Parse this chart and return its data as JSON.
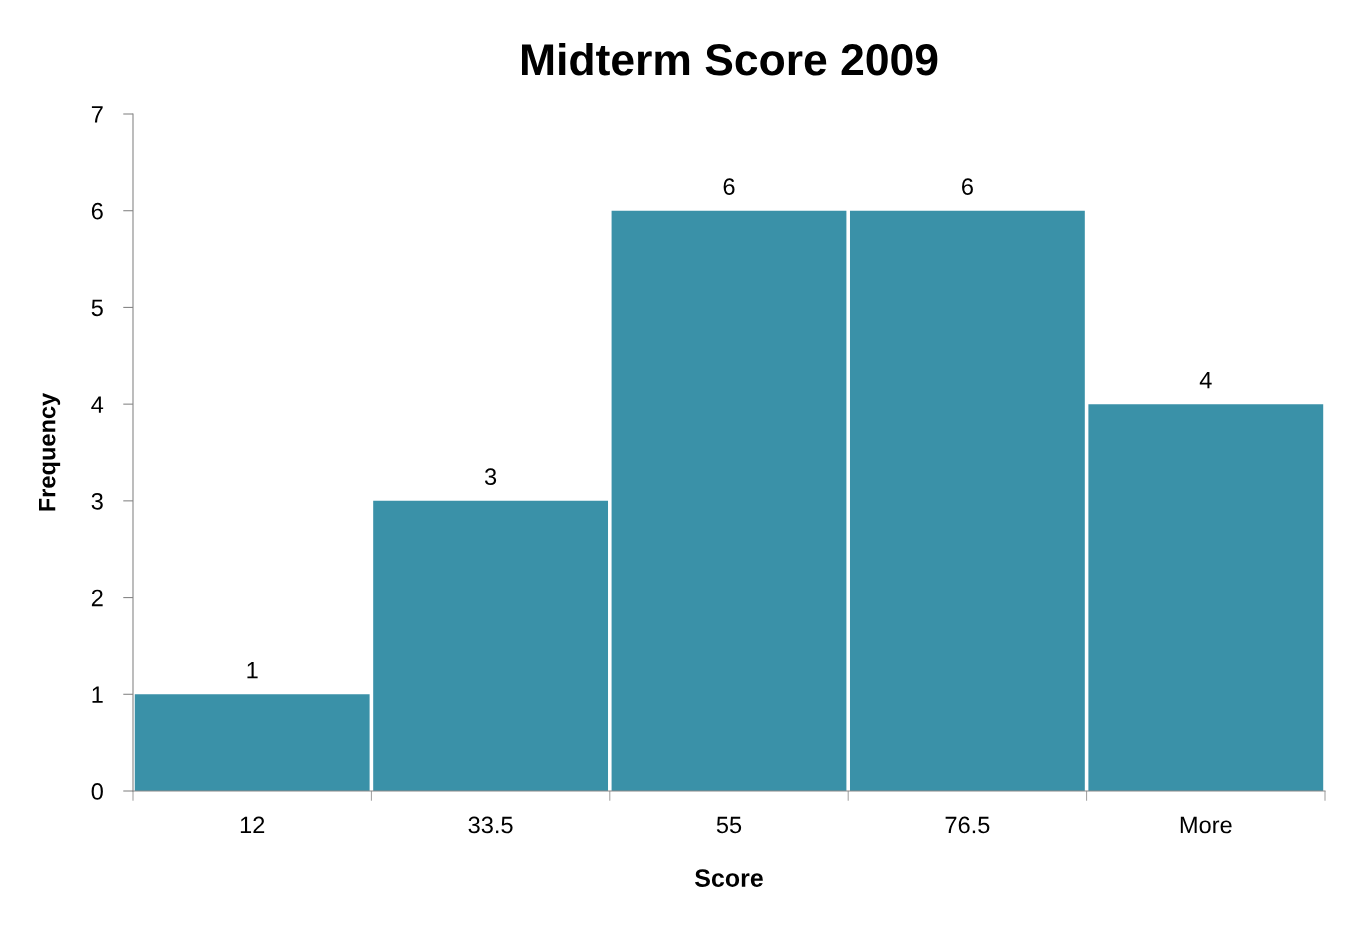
{
  "chart_data": {
    "type": "bar",
    "title": "Midterm Score 2009",
    "xlabel": "Score",
    "ylabel": "Frequency",
    "categories": [
      "12",
      "33.5",
      "55",
      "76.5",
      "More"
    ],
    "values": [
      1,
      3,
      6,
      6,
      4
    ],
    "color": "#3a91a8",
    "ylim": [
      0,
      7
    ],
    "yticks": [
      0,
      1,
      2,
      3,
      4,
      5,
      6,
      7
    ],
    "data_labels": true,
    "grid": false
  }
}
